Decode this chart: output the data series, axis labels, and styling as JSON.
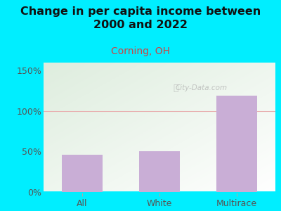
{
  "title": "Change in per capita income between\n2000 and 2022",
  "subtitle": "Corning, OH",
  "categories": [
    "All",
    "White",
    "Multirace"
  ],
  "values": [
    46,
    50,
    119
  ],
  "bar_color": "#c9aed6",
  "title_fontsize": 11.5,
  "title_fontweight": "bold",
  "subtitle_fontsize": 10,
  "subtitle_color": "#cc4444",
  "tick_label_fontsize": 9,
  "ylabel_ticks": [
    0,
    50,
    100,
    150
  ],
  "ylabel_labels": [
    "0%",
    "50%",
    "100%",
    "150%"
  ],
  "ylim": [
    0,
    160
  ],
  "background_outer": "#00eeff",
  "bg_top_left": "#ddeedd",
  "bg_bottom_right": "#ffffff",
  "grid_color": "#e8b0b0",
  "watermark": "City-Data.com",
  "watermark_color": "#aaaaaa"
}
